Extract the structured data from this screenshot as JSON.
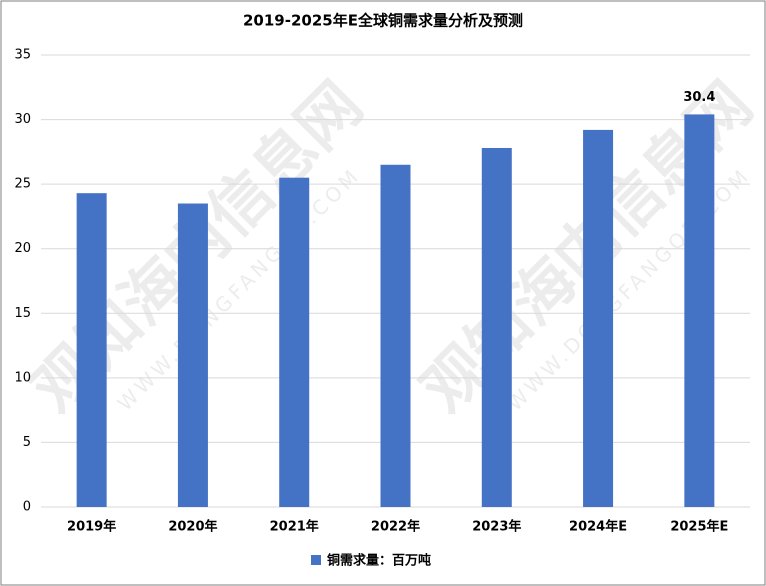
{
  "chart_data": {
    "type": "bar",
    "title": "2019-2025年E全球铜需求量分析及预测",
    "categories": [
      "2019年",
      "2020年",
      "2021年",
      "2022年",
      "2023年",
      "2024年E",
      "2025年E"
    ],
    "series": [
      {
        "name": "铜需求量：百万吨",
        "color": "#4472c4",
        "values": [
          24.3,
          23.5,
          25.5,
          26.5,
          27.8,
          29.2,
          30.4
        ],
        "value_labels": [
          null,
          null,
          null,
          null,
          null,
          null,
          "30.4"
        ]
      }
    ],
    "ylim": [
      0,
      35
    ],
    "yticks": [
      0,
      5,
      10,
      15,
      20,
      25,
      30,
      35
    ],
    "grid": true,
    "legend": "bottom",
    "watermark": [
      "观知海内信息网",
      "WWW.DONGFANGQB.COM"
    ]
  }
}
